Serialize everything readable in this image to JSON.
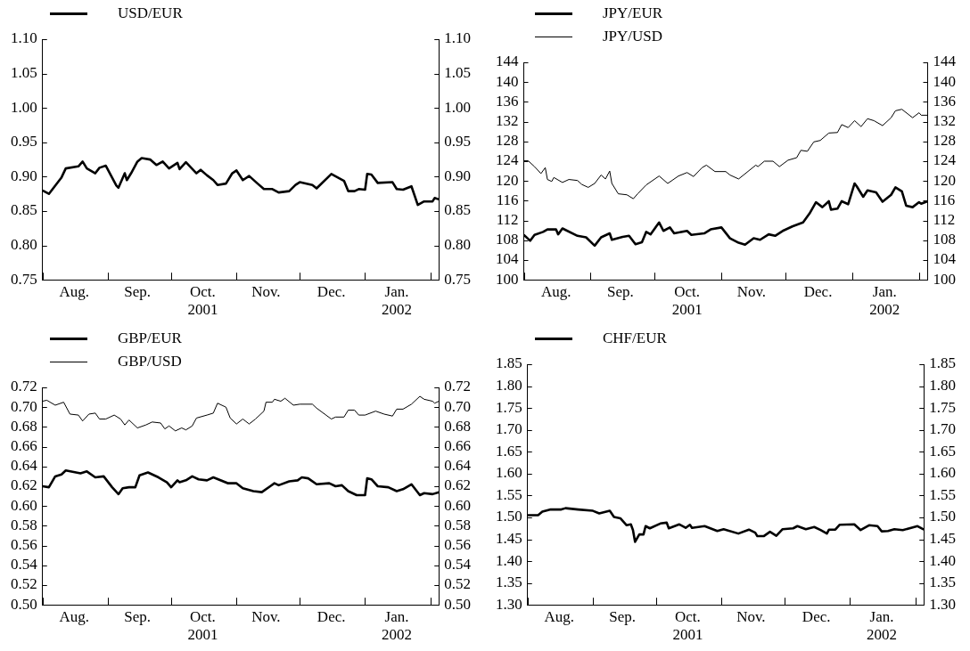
{
  "chart_data": [
    {
      "type": "line",
      "legend": "top left",
      "xlim": [
        "2001-08-01",
        "2002-02-05"
      ],
      "xticks": [
        {
          "value": "2001-08-01",
          "label": null
        },
        {
          "value": "2001-08-16",
          "label": "Aug."
        },
        {
          "value": "2001-09-01",
          "label": null
        },
        {
          "value": "2001-09-15",
          "label": "Sep."
        },
        {
          "value": "2001-10-01",
          "label": null
        },
        {
          "value": "2001-10-16",
          "label": "Oct.\n2001"
        },
        {
          "value": "2001-11-01",
          "label": null
        },
        {
          "value": "2001-11-15",
          "label": "Nov."
        },
        {
          "value": "2001-12-01",
          "label": null
        },
        {
          "value": "2001-12-16",
          "label": "Dec."
        },
        {
          "value": "2002-01-01",
          "label": null
        },
        {
          "value": "2002-01-16",
          "label": "Jan.\n2002"
        },
        {
          "value": "2002-02-01",
          "label": null
        }
      ],
      "ylim": [
        0.75,
        1.1
      ],
      "yticks": [
        {
          "value": 0.75,
          "label": "0.75"
        },
        {
          "value": 0.8,
          "label": "0.80"
        },
        {
          "value": 0.85,
          "label": "0.85"
        },
        {
          "value": 0.9,
          "label": "0.90"
        },
        {
          "value": 0.95,
          "label": "0.95"
        },
        {
          "value": 1.0,
          "label": "1.00"
        },
        {
          "value": 1.05,
          "label": "1.05"
        },
        {
          "value": 1.1,
          "label": "1.10"
        }
      ],
      "y2lim": [
        0.75,
        1.1
      ],
      "y2ticks": [
        {
          "value": 0.75,
          "label": "0.75"
        },
        {
          "value": 0.8,
          "label": "0.80"
        },
        {
          "value": 0.85,
          "label": "0.85"
        },
        {
          "value": 0.9,
          "label": "0.90"
        },
        {
          "value": 0.95,
          "label": "0.95"
        },
        {
          "value": 1.0,
          "label": "1.00"
        },
        {
          "value": 1.05,
          "label": "1.05"
        },
        {
          "value": 1.1,
          "label": "1.10"
        }
      ],
      "series": [
        {
          "name": "USD/EUR",
          "color": "#000000",
          "x": [
            "2001-08-01",
            "2001-08-04",
            "2001-08-10",
            "2001-08-12",
            "2001-08-18",
            "2001-08-20",
            "2001-08-22",
            "2001-08-26",
            "2001-08-28",
            "2001-08-31",
            "2001-09-05",
            "2001-09-06",
            "2001-09-09",
            "2001-09-10",
            "2001-09-12",
            "2001-09-15",
            "2001-09-17",
            "2001-09-21",
            "2001-09-24",
            "2001-09-27",
            "2001-09-30",
            "2001-10-04",
            "2001-10-05",
            "2001-10-08",
            "2001-10-13",
            "2001-10-15",
            "2001-10-18",
            "2001-10-21",
            "2001-10-23",
            "2001-10-27",
            "2001-10-30",
            "2001-11-01",
            "2001-11-04",
            "2001-11-07",
            "2001-11-11",
            "2001-11-14",
            "2001-11-18",
            "2001-11-21",
            "2001-11-26",
            "2001-11-29",
            "2001-12-01",
            "2001-12-07",
            "2001-12-09",
            "2001-12-16",
            "2001-12-22",
            "2001-12-24",
            "2001-12-27",
            "2001-12-29",
            "2002-01-01",
            "2002-01-02",
            "2002-01-04",
            "2002-01-07",
            "2002-01-14",
            "2002-01-16",
            "2002-01-19",
            "2002-01-23",
            "2002-01-26",
            "2002-01-29",
            "2002-02-02",
            "2002-02-03",
            "2002-02-05"
          ],
          "values": [
            0.88,
            0.875,
            0.899,
            0.912,
            0.915,
            0.922,
            0.912,
            0.905,
            0.913,
            0.916,
            0.887,
            0.884,
            0.905,
            0.895,
            0.905,
            0.922,
            0.927,
            0.925,
            0.917,
            0.922,
            0.912,
            0.92,
            0.911,
            0.921,
            0.905,
            0.91,
            0.902,
            0.895,
            0.888,
            0.89,
            0.905,
            0.909,
            0.895,
            0.901,
            0.89,
            0.882,
            0.882,
            0.877,
            0.879,
            0.888,
            0.892,
            0.888,
            0.883,
            0.904,
            0.894,
            0.879,
            0.879,
            0.882,
            0.881,
            0.904,
            0.903,
            0.891,
            0.892,
            0.882,
            0.881,
            0.886,
            0.859,
            0.864,
            0.864,
            0.869,
            0.867
          ]
        }
      ]
    },
    {
      "type": "line",
      "legend": "top left",
      "xlim": [
        "2001-08-01",
        "2002-02-05"
      ],
      "xticks": [
        {
          "value": "2001-08-01",
          "label": null
        },
        {
          "value": "2001-08-16",
          "label": "Aug."
        },
        {
          "value": "2001-09-01",
          "label": null
        },
        {
          "value": "2001-09-15",
          "label": "Sep."
        },
        {
          "value": "2001-10-01",
          "label": null
        },
        {
          "value": "2001-10-16",
          "label": "Oct.\n2001"
        },
        {
          "value": "2001-11-01",
          "label": null
        },
        {
          "value": "2001-11-15",
          "label": "Nov."
        },
        {
          "value": "2001-12-01",
          "label": null
        },
        {
          "value": "2001-12-16",
          "label": "Dec."
        },
        {
          "value": "2002-01-01",
          "label": null
        },
        {
          "value": "2002-01-16",
          "label": "Jan.\n2002"
        },
        {
          "value": "2002-02-01",
          "label": null
        }
      ],
      "ylim": [
        100,
        144
      ],
      "yticks": [
        100,
        104,
        108,
        112,
        116,
        120,
        124,
        128,
        132,
        136,
        140,
        144
      ],
      "y2lim": [
        100,
        144
      ],
      "y2ticks": [
        100,
        104,
        108,
        112,
        116,
        120,
        124,
        128,
        132,
        136,
        140,
        144
      ],
      "series": [
        {
          "name": "JPY/EUR",
          "color": "#000000",
          "x": [
            "2001-08-01",
            "2001-08-04",
            "2001-08-06",
            "2001-08-10",
            "2001-08-12",
            "2001-08-16",
            "2001-08-17",
            "2001-08-19",
            "2001-08-26",
            "2001-08-30",
            "2001-09-03",
            "2001-09-06",
            "2001-09-10",
            "2001-09-11",
            "2001-09-16",
            "2001-09-19",
            "2001-09-22",
            "2001-09-25",
            "2001-09-27",
            "2001-09-29",
            "2001-10-03",
            "2001-10-05",
            "2001-10-08",
            "2001-10-10",
            "2001-10-16",
            "2001-10-18",
            "2001-10-24",
            "2001-10-27",
            "2001-11-01",
            "2001-11-05",
            "2001-11-09",
            "2001-11-12",
            "2001-11-16",
            "2001-11-19",
            "2001-11-23",
            "2001-11-26",
            "2001-11-30",
            "2001-12-04",
            "2001-12-09",
            "2001-12-12",
            "2001-12-15",
            "2001-12-18",
            "2001-12-21",
            "2001-12-22",
            "2001-12-25",
            "2001-12-27",
            "2001-12-30",
            "2002-01-02",
            "2002-01-03",
            "2002-01-06",
            "2002-01-08",
            "2002-01-12",
            "2002-01-15",
            "2002-01-19",
            "2002-01-21",
            "2002-01-24",
            "2002-01-26",
            "2002-01-29",
            "2002-02-01",
            "2002-02-02",
            "2002-02-05"
          ],
          "values": [
            109.1,
            107.9,
            109.1,
            109.7,
            110.2,
            110.2,
            109.2,
            110.4,
            108.9,
            108.6,
            106.9,
            108.6,
            109.4,
            108.1,
            108.7,
            108.9,
            107.2,
            107.6,
            109.7,
            109.2,
            111.6,
            109.9,
            110.6,
            109.4,
            109.9,
            109.1,
            109.4,
            110.2,
            110.6,
            108.4,
            107.5,
            107.1,
            108.4,
            108.1,
            109.2,
            108.9,
            110.0,
            110.8,
            111.6,
            113.4,
            115.7,
            114.7,
            115.9,
            114.2,
            114.4,
            115.9,
            115.3,
            119.5,
            118.9,
            116.8,
            118.1,
            117.7,
            115.8,
            117.2,
            118.7,
            117.9,
            115.0,
            114.7,
            115.7,
            115.4,
            115.9
          ]
        },
        {
          "name": "JPY/USD",
          "color": "#000000",
          "x": [
            "2001-08-01",
            "2001-08-03",
            "2001-08-06",
            "2001-08-09",
            "2001-08-11",
            "2001-08-12",
            "2001-08-14",
            "2001-08-15",
            "2001-08-19",
            "2001-08-22",
            "2001-08-26",
            "2001-08-28",
            "2001-08-31",
            "2001-09-03",
            "2001-09-06",
            "2001-09-08",
            "2001-09-10",
            "2001-09-11",
            "2001-09-14",
            "2001-09-18",
            "2001-09-21",
            "2001-09-23",
            "2001-09-27",
            "2001-10-03",
            "2001-10-07",
            "2001-10-12",
            "2001-10-16",
            "2001-10-19",
            "2001-10-23",
            "2001-10-25",
            "2001-10-29",
            "2001-11-03",
            "2001-11-05",
            "2001-11-09",
            "2001-11-17",
            "2001-11-18",
            "2001-11-21",
            "2001-11-25",
            "2001-11-28",
            "2001-12-02",
            "2001-12-06",
            "2001-12-08",
            "2001-12-11",
            "2001-12-14",
            "2001-12-17",
            "2001-12-21",
            "2001-12-25",
            "2001-12-27",
            "2001-12-30",
            "2002-01-02",
            "2002-01-05",
            "2002-01-08",
            "2002-01-11",
            "2002-01-15",
            "2002-01-19",
            "2002-01-21",
            "2002-01-24",
            "2002-01-29",
            "2002-02-01",
            "2002-02-02",
            "2002-02-05"
          ],
          "values": [
            124.1,
            124.1,
            122.9,
            121.5,
            122.7,
            120.3,
            119.9,
            120.7,
            119.7,
            120.3,
            120.1,
            119.3,
            118.7,
            119.5,
            121.2,
            120.4,
            122.0,
            119.5,
            117.4,
            117.2,
            116.4,
            117.4,
            119.2,
            121.0,
            119.5,
            121.0,
            121.7,
            120.9,
            122.7,
            123.2,
            121.9,
            121.9,
            121.2,
            120.4,
            123.2,
            122.9,
            124.0,
            124.0,
            122.9,
            124.2,
            124.7,
            126.2,
            126.0,
            127.9,
            128.2,
            129.7,
            129.8,
            131.4,
            130.8,
            132.2,
            131.0,
            132.6,
            132.2,
            131.2,
            132.8,
            134.2,
            134.5,
            132.8,
            133.8,
            133.3,
            133.3
          ]
        }
      ]
    },
    {
      "type": "line",
      "legend": "top left",
      "xlim": [
        "2001-08-01",
        "2002-02-05"
      ],
      "xticks": [
        {
          "value": "2001-08-01",
          "label": null
        },
        {
          "value": "2001-08-16",
          "label": "Aug."
        },
        {
          "value": "2001-09-01",
          "label": null
        },
        {
          "value": "2001-09-15",
          "label": "Sep."
        },
        {
          "value": "2001-10-01",
          "label": null
        },
        {
          "value": "2001-10-16",
          "label": "Oct.\n2001"
        },
        {
          "value": "2001-11-01",
          "label": null
        },
        {
          "value": "2001-11-15",
          "label": "Nov."
        },
        {
          "value": "2001-12-01",
          "label": null
        },
        {
          "value": "2001-12-16",
          "label": "Dec."
        },
        {
          "value": "2002-01-01",
          "label": null
        },
        {
          "value": "2002-01-16",
          "label": "Jan.\n2002"
        },
        {
          "value": "2002-02-01",
          "label": null
        }
      ],
      "ylim": [
        0.5,
        0.72
      ],
      "yticks": [
        {
          "value": 0.5,
          "label": "0.50"
        },
        {
          "value": 0.52,
          "label": "0.52"
        },
        {
          "value": 0.54,
          "label": "0.54"
        },
        {
          "value": 0.56,
          "label": "0.56"
        },
        {
          "value": 0.58,
          "label": "0.58"
        },
        {
          "value": 0.6,
          "label": "0.60"
        },
        {
          "value": 0.62,
          "label": "0.62"
        },
        {
          "value": 0.64,
          "label": "0.64"
        },
        {
          "value": 0.66,
          "label": "0.66"
        },
        {
          "value": 0.68,
          "label": "0.68"
        },
        {
          "value": 0.7,
          "label": "0.70"
        },
        {
          "value": 0.72,
          "label": "0.72"
        }
      ],
      "y2lim": [
        0.5,
        0.72
      ],
      "y2ticks": [
        {
          "value": 0.5,
          "label": "0.50"
        },
        {
          "value": 0.52,
          "label": "0.52"
        },
        {
          "value": 0.54,
          "label": "0.54"
        },
        {
          "value": 0.56,
          "label": "0.56"
        },
        {
          "value": 0.58,
          "label": "0.58"
        },
        {
          "value": 0.6,
          "label": "0.60"
        },
        {
          "value": 0.62,
          "label": "0.62"
        },
        {
          "value": 0.64,
          "label": "0.64"
        },
        {
          "value": 0.66,
          "label": "0.66"
        },
        {
          "value": 0.68,
          "label": "0.68"
        },
        {
          "value": 0.7,
          "label": "0.70"
        },
        {
          "value": 0.72,
          "label": "0.72"
        }
      ],
      "series": [
        {
          "name": "GBP/EUR",
          "color": "#000000",
          "x": [
            "2001-08-01",
            "2001-08-04",
            "2001-08-07",
            "2001-08-10",
            "2001-08-12",
            "2001-08-19",
            "2001-08-22",
            "2001-08-26",
            "2001-08-30",
            "2001-09-03",
            "2001-09-06",
            "2001-09-08",
            "2001-09-11",
            "2001-09-14",
            "2001-09-16",
            "2001-09-20",
            "2001-09-25",
            "2001-09-29",
            "2001-10-01",
            "2001-10-04",
            "2001-10-05",
            "2001-10-08",
            "2001-10-11",
            "2001-10-14",
            "2001-10-18",
            "2001-10-21",
            "2001-10-28",
            "2001-11-01",
            "2001-11-04",
            "2001-11-09",
            "2001-11-13",
            "2001-11-17",
            "2001-11-19",
            "2001-11-21",
            "2001-11-26",
            "2001-11-30",
            "2001-12-02",
            "2001-12-05",
            "2001-12-09",
            "2001-12-15",
            "2001-12-18",
            "2001-12-21",
            "2001-12-24",
            "2001-12-28",
            "2002-01-01",
            "2002-01-02",
            "2002-01-04",
            "2002-01-07",
            "2002-01-12",
            "2002-01-16",
            "2002-01-19",
            "2002-01-23",
            "2002-01-27",
            "2002-01-29",
            "2002-02-02",
            "2002-02-05"
          ],
          "values": [
            0.62,
            0.619,
            0.63,
            0.632,
            0.636,
            0.633,
            0.635,
            0.629,
            0.63,
            0.619,
            0.612,
            0.618,
            0.619,
            0.619,
            0.631,
            0.634,
            0.629,
            0.624,
            0.619,
            0.626,
            0.624,
            0.626,
            0.63,
            0.627,
            0.626,
            0.629,
            0.623,
            0.623,
            0.618,
            0.615,
            0.614,
            0.62,
            0.623,
            0.621,
            0.625,
            0.626,
            0.629,
            0.628,
            0.622,
            0.623,
            0.62,
            0.621,
            0.615,
            0.611,
            0.611,
            0.628,
            0.627,
            0.62,
            0.619,
            0.615,
            0.617,
            0.622,
            0.611,
            0.613,
            0.612,
            0.614
          ]
        },
        {
          "name": "GBP/USD",
          "color": "#000000",
          "x": [
            "2001-08-01",
            "2001-08-03",
            "2001-08-07",
            "2001-08-11",
            "2001-08-14",
            "2001-08-18",
            "2001-08-20",
            "2001-08-23",
            "2001-08-26",
            "2001-08-28",
            "2001-08-31",
            "2001-09-04",
            "2001-09-07",
            "2001-09-09",
            "2001-09-11",
            "2001-09-15",
            "2001-09-19",
            "2001-09-22",
            "2001-09-26",
            "2001-09-28",
            "2001-09-30",
            "2001-10-03",
            "2001-10-06",
            "2001-10-08",
            "2001-10-11",
            "2001-10-13",
            "2001-10-18",
            "2001-10-21",
            "2001-10-23",
            "2001-10-27",
            "2001-10-29",
            "2001-11-01",
            "2001-11-04",
            "2001-11-07",
            "2001-11-10",
            "2001-11-14",
            "2001-11-15",
            "2001-11-18",
            "2001-11-19",
            "2001-11-22",
            "2001-11-24",
            "2001-11-28",
            "2001-12-01",
            "2001-12-07",
            "2001-12-09",
            "2001-12-16",
            "2001-12-18",
            "2001-12-22",
            "2001-12-24",
            "2001-12-27",
            "2001-12-29",
            "2002-01-01",
            "2002-01-06",
            "2002-01-10",
            "2002-01-14",
            "2002-01-16",
            "2002-01-19",
            "2002-01-23",
            "2002-01-27",
            "2002-01-29",
            "2002-02-02",
            "2002-02-03",
            "2002-02-05"
          ],
          "values": [
            0.706,
            0.707,
            0.702,
            0.705,
            0.693,
            0.692,
            0.686,
            0.693,
            0.694,
            0.688,
            0.688,
            0.692,
            0.688,
            0.682,
            0.687,
            0.679,
            0.682,
            0.685,
            0.684,
            0.678,
            0.681,
            0.676,
            0.679,
            0.677,
            0.681,
            0.689,
            0.692,
            0.694,
            0.704,
            0.7,
            0.689,
            0.683,
            0.688,
            0.683,
            0.688,
            0.696,
            0.705,
            0.705,
            0.708,
            0.706,
            0.709,
            0.702,
            0.703,
            0.703,
            0.699,
            0.688,
            0.69,
            0.69,
            0.697,
            0.697,
            0.692,
            0.692,
            0.696,
            0.693,
            0.691,
            0.698,
            0.698,
            0.703,
            0.711,
            0.708,
            0.706,
            0.704,
            0.706
          ]
        }
      ]
    },
    {
      "type": "line",
      "legend": "top left",
      "xlim": [
        "2001-08-01",
        "2002-02-05"
      ],
      "xticks": [
        {
          "value": "2001-08-01",
          "label": null
        },
        {
          "value": "2001-08-16",
          "label": "Aug."
        },
        {
          "value": "2001-09-01",
          "label": null
        },
        {
          "value": "2001-09-15",
          "label": "Sep."
        },
        {
          "value": "2001-10-01",
          "label": null
        },
        {
          "value": "2001-10-16",
          "label": "Oct.\n2001"
        },
        {
          "value": "2001-11-01",
          "label": null
        },
        {
          "value": "2001-11-15",
          "label": "Nov."
        },
        {
          "value": "2001-12-01",
          "label": null
        },
        {
          "value": "2001-12-16",
          "label": "Dec."
        },
        {
          "value": "2002-01-01",
          "label": null
        },
        {
          "value": "2002-01-16",
          "label": "Jan.\n2002"
        },
        {
          "value": "2002-02-01",
          "label": null
        }
      ],
      "ylim": [
        1.3,
        1.85
      ],
      "yticks": [
        {
          "value": 1.3,
          "label": "1.30"
        },
        {
          "value": 1.35,
          "label": "1.35"
        },
        {
          "value": 1.4,
          "label": "1.40"
        },
        {
          "value": 1.45,
          "label": "1.45"
        },
        {
          "value": 1.5,
          "label": "1.50"
        },
        {
          "value": 1.55,
          "label": "1.55"
        },
        {
          "value": 1.6,
          "label": "1.60"
        },
        {
          "value": 1.65,
          "label": "1.65"
        },
        {
          "value": 1.7,
          "label": "1.70"
        },
        {
          "value": 1.75,
          "label": "1.75"
        },
        {
          "value": 1.8,
          "label": "1.80"
        },
        {
          "value": 1.85,
          "label": "1.85"
        }
      ],
      "y2lim": [
        1.3,
        1.85
      ],
      "y2ticks": [
        {
          "value": 1.3,
          "label": "1.30"
        },
        {
          "value": 1.35,
          "label": "1.35"
        },
        {
          "value": 1.4,
          "label": "1.40"
        },
        {
          "value": 1.45,
          "label": "1.45"
        },
        {
          "value": 1.5,
          "label": "1.50"
        },
        {
          "value": 1.55,
          "label": "1.55"
        },
        {
          "value": 1.6,
          "label": "1.60"
        },
        {
          "value": 1.65,
          "label": "1.65"
        },
        {
          "value": 1.7,
          "label": "1.70"
        },
        {
          "value": 1.75,
          "label": "1.75"
        },
        {
          "value": 1.8,
          "label": "1.80"
        },
        {
          "value": 1.85,
          "label": "1.85"
        }
      ],
      "series": [
        {
          "name": "CHF/EUR",
          "color": "#000000",
          "x": [
            "2001-08-01",
            "2001-08-06",
            "2001-08-08",
            "2001-08-12",
            "2001-08-17",
            "2001-08-19",
            "2001-08-25",
            "2001-09-01",
            "2001-09-04",
            "2001-09-09",
            "2001-09-11",
            "2001-09-14",
            "2001-09-17",
            "2001-09-19",
            "2001-09-20",
            "2001-09-21",
            "2001-09-23",
            "2001-09-25",
            "2001-09-26",
            "2001-09-28",
            "2001-10-03",
            "2001-10-06",
            "2001-10-07",
            "2001-10-12",
            "2001-10-15",
            "2001-10-17",
            "2001-10-18",
            "2001-10-24",
            "2001-10-30",
            "2001-11-02",
            "2001-11-09",
            "2001-11-14",
            "2001-11-17",
            "2001-11-18",
            "2001-11-21",
            "2001-11-24",
            "2001-11-27",
            "2001-11-30",
            "2001-12-05",
            "2001-12-07",
            "2001-12-11",
            "2001-12-15",
            "2001-12-18",
            "2001-12-21",
            "2001-12-22",
            "2001-12-25",
            "2001-12-27",
            "2002-01-03",
            "2002-01-06",
            "2002-01-10",
            "2002-01-14",
            "2002-01-16",
            "2002-01-19",
            "2002-01-22",
            "2002-01-26",
            "2002-02-02",
            "2002-02-05"
          ],
          "values": [
            1.505,
            1.505,
            1.513,
            1.518,
            1.518,
            1.521,
            1.518,
            1.515,
            1.509,
            1.515,
            1.501,
            1.498,
            1.482,
            1.484,
            1.471,
            1.444,
            1.461,
            1.461,
            1.48,
            1.475,
            1.486,
            1.488,
            1.475,
            1.484,
            1.476,
            1.483,
            1.476,
            1.48,
            1.469,
            1.473,
            1.463,
            1.472,
            1.465,
            1.457,
            1.457,
            1.467,
            1.458,
            1.473,
            1.475,
            1.48,
            1.473,
            1.478,
            1.471,
            1.463,
            1.472,
            1.472,
            1.483,
            1.484,
            1.471,
            1.482,
            1.48,
            1.468,
            1.469,
            1.473,
            1.471,
            1.48,
            1.472
          ]
        }
      ]
    }
  ]
}
